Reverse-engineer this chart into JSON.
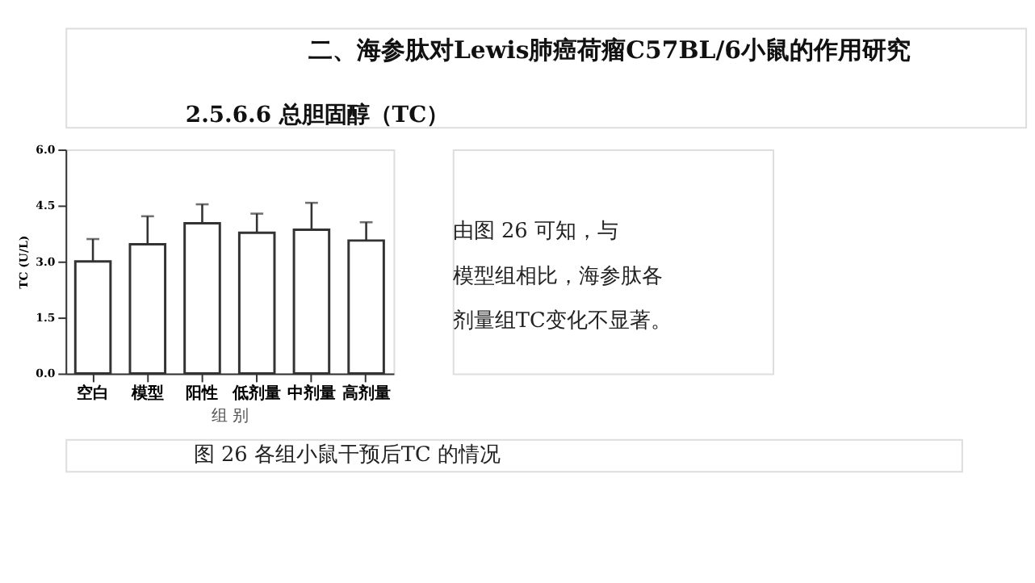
{
  "chart_data": {
    "type": "bar",
    "title": "二、海参肽对Lewis肺癌荷瘤C57BL/6小鼠的作用研究",
    "subtitle": "2.5.6.6 总胆固醇（TC）",
    "xlabel": "组 别",
    "ylabel": "TC (U/L)",
    "categories": [
      "空白",
      "模型",
      "阳性",
      "低剂量",
      "中剂量",
      "高剂量"
    ],
    "values": [
      3.0,
      3.46,
      4.02,
      3.77,
      3.85,
      3.56
    ],
    "errors": [
      [
        3.0,
        3.6
      ],
      [
        3.46,
        4.21
      ],
      [
        4.02,
        4.53
      ],
      [
        3.77,
        4.28
      ],
      [
        3.85,
        4.57
      ],
      [
        3.56,
        4.05
      ]
    ],
    "color": "#ffffff",
    "ylim": [
      0,
      6
    ],
    "yticks": [
      {
        "value": 0,
        "label": "0.0"
      },
      {
        "value": 1.5,
        "label": "1.5"
      },
      {
        "value": 3,
        "label": "3.0"
      },
      {
        "value": 4.5,
        "label": "4.5"
      },
      {
        "value": 6,
        "label": "6.0"
      }
    ],
    "grid": false,
    "annotations": [
      "由图 26 可知，与模型组相比，海参肽各剂量组TC变化不显著。",
      "图 26 各组小鼠干预后TC 的情况"
    ]
  }
}
